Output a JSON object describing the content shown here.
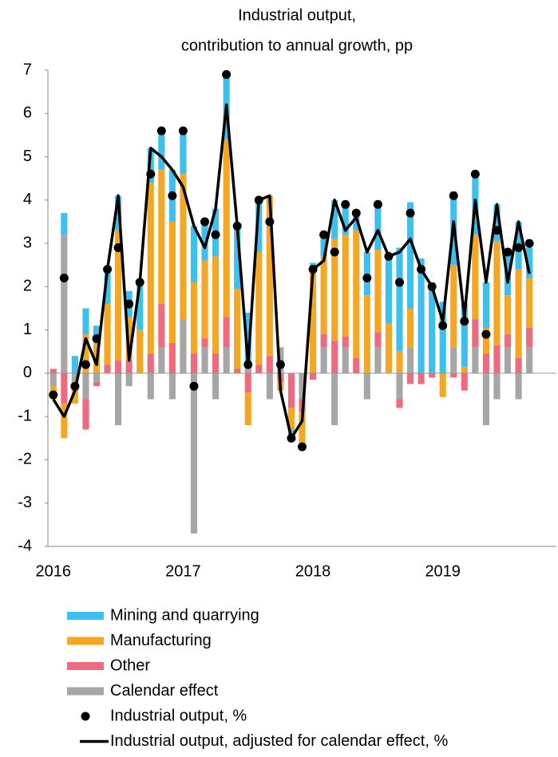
{
  "chart_data": {
    "type": "bar",
    "title": "Industrial output,",
    "subtitle": "contribution to annual growth, pp",
    "categories": [
      "2016",
      null,
      null,
      null,
      null,
      null,
      null,
      null,
      null,
      null,
      null,
      null,
      "2017",
      null,
      null,
      null,
      null,
      null,
      null,
      null,
      null,
      null,
      null,
      null,
      "2018",
      null,
      null,
      null,
      null,
      null,
      null,
      null,
      null,
      null,
      null,
      null,
      "2019",
      null,
      null,
      null,
      null,
      null,
      null,
      null,
      null
    ],
    "ylim": [
      -4,
      7
    ],
    "yticks": [
      -4,
      -3,
      -2,
      -1,
      0,
      1,
      2,
      3,
      4,
      5,
      6,
      7
    ],
    "stacked": true,
    "series": [
      {
        "name": "Mining and quarrying",
        "type": "bar",
        "color": "#3dbfef",
        "values": [
          0,
          0.5,
          0.4,
          0.6,
          0.4,
          0.8,
          0.8,
          0.6,
          1.1,
          0.8,
          0.9,
          1.2,
          1.0,
          1.3,
          0.9,
          1.1,
          1.5,
          1.45,
          1.2,
          1.2,
          0,
          0,
          -0.2,
          0,
          0.15,
          0.5,
          0.9,
          0.7,
          0.4,
          1.0,
          1.05,
          1.55,
          2.4,
          2.45,
          2.65,
          2.1,
          1.65,
          1.7,
          1.45,
          1.4,
          1.05,
          0.85,
          1.0,
          1.1,
          0.7
        ]
      },
      {
        "name": "Manufacturing",
        "type": "bar",
        "color": "#f5a623",
        "values": [
          -0.3,
          -0.8,
          -0.5,
          0.9,
          0.7,
          1.4,
          3.0,
          1.0,
          1.0,
          3.95,
          3.1,
          2.8,
          3.35,
          1.65,
          1.8,
          2.25,
          4.1,
          1.85,
          -0.75,
          2.6,
          3.7,
          -0.2,
          -0.5,
          -0.8,
          2.4,
          1.8,
          2.35,
          2.35,
          2.95,
          1.8,
          1.9,
          1.15,
          0.5,
          0.9,
          0,
          0,
          -0.55,
          1.9,
          0.15,
          1.95,
          0.6,
          2.4,
          0.9,
          2.05,
          1.15
        ]
      },
      {
        "name": "Other",
        "type": "bar",
        "color": "#ef6a7f",
        "values": [
          0.1,
          -0.7,
          0,
          -0.7,
          -0.1,
          0.2,
          0.3,
          0.3,
          0,
          0.45,
          1.0,
          0.7,
          0,
          0.45,
          0.2,
          0.45,
          0.7,
          0.1,
          -0.45,
          0.2,
          0.4,
          -0.2,
          -0.8,
          -0.3,
          -0.15,
          0.3,
          0.75,
          0.25,
          0.35,
          0,
          0.35,
          0,
          -0.2,
          -0.25,
          -0.25,
          -0.1,
          0,
          -0.1,
          -0.4,
          0.65,
          0.45,
          0.65,
          0.3,
          0.35,
          0.45
        ]
      },
      {
        "name": "Calendar effect",
        "type": "bar",
        "color": "#a6a6a6",
        "values": [
          -0.3,
          3.2,
          -0.2,
          -0.6,
          -0.2,
          0,
          -1.2,
          -0.3,
          0,
          -0.6,
          0.6,
          -0.6,
          1.25,
          -3.7,
          0.6,
          -0.6,
          0.6,
          0,
          0.2,
          0,
          -0.6,
          0.6,
          0,
          -0.6,
          0,
          0.6,
          -1.2,
          0.6,
          0,
          -0.6,
          0.6,
          0,
          -0.6,
          0.6,
          0,
          0,
          0,
          0.6,
          0,
          0.6,
          -1.2,
          -0.6,
          0.6,
          -0.6,
          0.6
        ]
      },
      {
        "name": "Industrial output, %",
        "type": "scatter",
        "color": "#000000",
        "values": [
          -0.5,
          2.2,
          -0.3,
          0.2,
          0.8,
          2.4,
          2.9,
          1.6,
          2.1,
          4.6,
          5.6,
          4.1,
          5.6,
          -0.3,
          3.5,
          3.2,
          6.9,
          3.4,
          0.2,
          4.0,
          3.5,
          0.2,
          -1.5,
          -1.7,
          2.4,
          3.2,
          2.8,
          3.9,
          3.7,
          2.2,
          3.9,
          2.7,
          2.1,
          3.7,
          2.4,
          2.0,
          1.1,
          4.1,
          1.2,
          4.6,
          0.9,
          3.3,
          2.8,
          2.9,
          3.0
        ]
      },
      {
        "name": "Industrial output, adjusted for calendar effect, %",
        "type": "line",
        "color": "#000000",
        "values": [
          -0.6,
          -1.0,
          -0.4,
          0.8,
          0.2,
          2.4,
          4.1,
          0.3,
          2.1,
          5.2,
          5.0,
          4.7,
          4.3,
          3.4,
          2.9,
          3.8,
          6.2,
          3.4,
          0.2,
          4.0,
          4.1,
          -0.4,
          -1.5,
          -1.1,
          2.4,
          2.6,
          4.0,
          3.3,
          3.6,
          2.8,
          3.3,
          2.7,
          2.8,
          3.1,
          2.4,
          2.0,
          1.2,
          3.5,
          1.3,
          4.0,
          2.1,
          3.9,
          2.1,
          3.5,
          2.3
        ]
      }
    ]
  }
}
